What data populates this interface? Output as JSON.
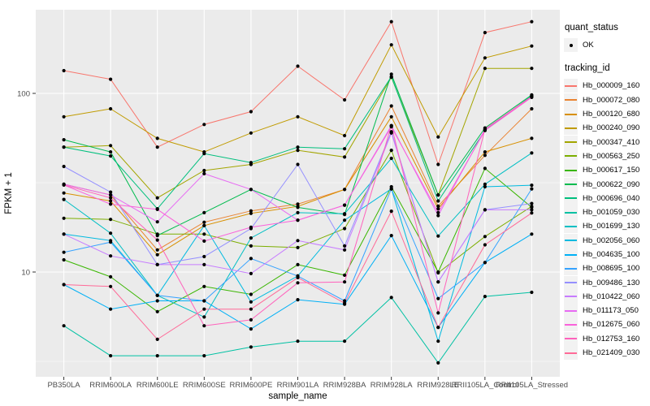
{
  "chart_data": {
    "type": "line",
    "title": "",
    "xlabel": "sample_name",
    "ylabel": "FPKM + 1",
    "y_scale": "log10",
    "y_ticks": [
      10,
      100
    ],
    "y_minor_ticks": [
      3.162,
      31.62,
      316.2
    ],
    "ylim_log": [
      0.44,
      2.47
    ],
    "grid": "on",
    "legend_position": "right",
    "point_marker": "black-dot",
    "categories": [
      "PB350LA",
      "RRIM600LA",
      "RRIM600LE",
      "RRIM600SE",
      "RRIM600PE",
      "RRIM901LA",
      "RRIM928BA",
      "RRIM928LA",
      "RRIM928LE",
      "RRII105LA_Control",
      "RRII105LA_Stressed"
    ],
    "series": [
      {
        "name": "Hb_000009_160",
        "color": "#F8766D",
        "values": [
          134,
          120,
          50,
          67,
          79,
          142,
          92,
          252,
          40,
          219,
          252
        ]
      },
      {
        "name": "Hb_000072_080",
        "color": "#EA8331",
        "values": [
          31,
          27,
          13.3,
          19,
          22,
          24,
          29,
          85,
          23.4,
          45,
          82
        ]
      },
      {
        "name": "Hb_000120_680",
        "color": "#D89000",
        "values": [
          27.7,
          25,
          12.5,
          18.2,
          21.3,
          23.3,
          29,
          74,
          22.6,
          47,
          56
        ]
      },
      {
        "name": "Hb_000240_090",
        "color": "#C09B00",
        "values": [
          74,
          82,
          56,
          47,
          60,
          74,
          58,
          187,
          57,
          158,
          184
        ]
      },
      {
        "name": "Hb_000347_410",
        "color": "#A3A500",
        "values": [
          50,
          51,
          26,
          37,
          40,
          48,
          44,
          123,
          27,
          138,
          138
        ]
      },
      {
        "name": "Hb_000563_250",
        "color": "#7CAE00",
        "values": [
          20,
          19.7,
          16.3,
          16.3,
          14,
          13.7,
          17.5,
          48,
          9.9,
          15.8,
          23.3
        ]
      },
      {
        "name": "Hb_000617_150",
        "color": "#39B600",
        "values": [
          11.7,
          9.4,
          6.0,
          8.3,
          7.5,
          11.0,
          9.6,
          30,
          10,
          38,
          23
        ]
      },
      {
        "name": "Hb_000622_090",
        "color": "#00BB4E",
        "values": [
          55,
          47,
          16,
          21.5,
          29,
          23,
          21,
          128,
          27,
          64,
          98
        ]
      },
      {
        "name": "Hb_000696_040",
        "color": "#00BF7D",
        "values": [
          50,
          44.6,
          22.6,
          46,
          41,
          50,
          49,
          124,
          25,
          62,
          97
        ]
      },
      {
        "name": "Hb_001059_030",
        "color": "#00C1A3",
        "values": [
          5.0,
          3.4,
          3.4,
          3.4,
          3.8,
          4.1,
          4.1,
          7.2,
          3.1,
          7.3,
          7.7
        ]
      },
      {
        "name": "Hb_001699_130",
        "color": "#00BFC4",
        "values": [
          25.5,
          16.5,
          7.4,
          5.6,
          15.5,
          21.5,
          21.2,
          43.3,
          15.9,
          31,
          46.4
        ]
      },
      {
        "name": "Hb_002056_060",
        "color": "#00BAE0",
        "values": [
          16.3,
          15.0,
          7.4,
          18.2,
          6.8,
          9.5,
          19.5,
          29.2,
          4.1,
          30,
          30.6
        ]
      },
      {
        "name": "Hb_004635_100",
        "color": "#00B0F6",
        "values": [
          8.5,
          6.2,
          6.9,
          6.9,
          4.8,
          7.0,
          6.6,
          16.0,
          4.9,
          11.3,
          16.3
        ]
      },
      {
        "name": "Hb_008695_100",
        "color": "#35A2FF",
        "values": [
          12.9,
          14.7,
          7.4,
          6.9,
          11.9,
          9.5,
          6.9,
          29.2,
          7.1,
          11.3,
          29.2
        ]
      },
      {
        "name": "Hb_009486_130",
        "color": "#9590FF",
        "values": [
          39,
          28,
          11.0,
          12.2,
          17.5,
          40,
          14.0,
          61,
          8.8,
          22.3,
          24.2
        ]
      },
      {
        "name": "Hb_010422_060",
        "color": "#C77CFF",
        "values": [
          16.3,
          12.3,
          11.0,
          11.0,
          9.8,
          15,
          13.3,
          60,
          8.8,
          22.3,
          22.3
        ]
      },
      {
        "name": "Hb_011173_050",
        "color": "#E76BF3",
        "values": [
          31,
          27,
          19.1,
          35.5,
          29,
          19.5,
          23.7,
          66,
          20.7,
          63,
          96
        ]
      },
      {
        "name": "Hb_012675_060",
        "color": "#FA62DB",
        "values": [
          30.7,
          24,
          22.4,
          14.9,
          17.8,
          19.5,
          23.7,
          65,
          21.5,
          62,
          95
        ]
      },
      {
        "name": "Hb_012753_160",
        "color": "#FF62BC",
        "values": [
          30.7,
          26,
          15.1,
          5.0,
          5.4,
          8.7,
          8.8,
          66,
          5.9,
          63,
          96
        ]
      },
      {
        "name": "Hb_021409_030",
        "color": "#FF6A98",
        "values": [
          8.5,
          8.3,
          4.2,
          6.2,
          6.2,
          9.3,
          6.7,
          21.9,
          4.9,
          14.2,
          21.4
        ]
      }
    ]
  },
  "legend_quant": {
    "title": "quant_status",
    "items": [
      {
        "label": "OK"
      }
    ]
  },
  "legend_tracking": {
    "title": "tracking_id"
  },
  "theme": {
    "panel_bg": "#EBEBEB",
    "grid_color": "#FFFFFF",
    "axis_text_color": "#4D4D4D",
    "tick_color": "#333333",
    "point_color": "#000000",
    "key_bg": "#F2F2F2"
  }
}
